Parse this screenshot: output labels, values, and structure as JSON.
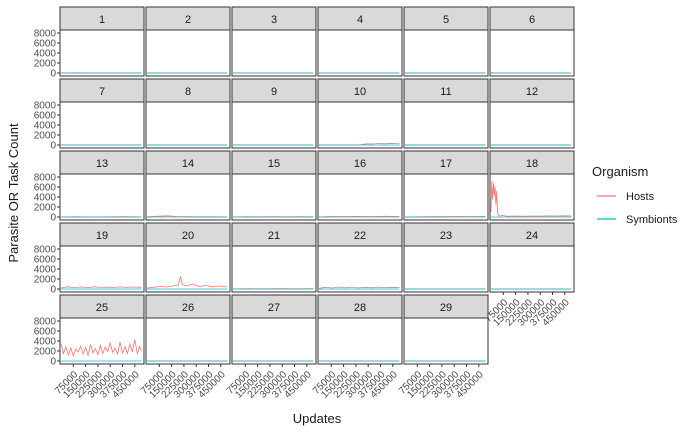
{
  "chart_data": {
    "type": "line",
    "xlabel": "Updates",
    "ylabel": "Parasite OR Task Count",
    "x_ticks": [
      75000,
      150000,
      225000,
      300000,
      375000,
      450000
    ],
    "x_tick_labels": [
      "75000",
      "150000",
      "225000",
      "300000",
      "375000",
      "450000"
    ],
    "xlim": [
      0,
      500000
    ],
    "y_ticks": [
      0,
      2000,
      4000,
      6000,
      8000
    ],
    "y_tick_labels": [
      "0",
      "2000",
      "4000",
      "6000",
      "8000"
    ],
    "ylim": [
      -600,
      8600
    ],
    "grid": false,
    "legend": {
      "title": "Organism",
      "position": "right",
      "entries": [
        {
          "name": "Hosts",
          "color": "#F8766D"
        },
        {
          "name": "Symbionts",
          "color": "#00BFC4"
        }
      ]
    },
    "panels": [
      {
        "label": "1",
        "hosts": [
          [
            0,
            0
          ],
          [
            50000,
            10
          ],
          [
            100000,
            40
          ],
          [
            150000,
            5
          ],
          [
            200000,
            0
          ],
          [
            250000,
            0
          ],
          [
            300000,
            0
          ],
          [
            350000,
            0
          ],
          [
            400000,
            0
          ],
          [
            450000,
            0
          ],
          [
            490000,
            0
          ]
        ],
        "symbionts": [
          [
            0,
            0
          ],
          [
            490000,
            0
          ]
        ]
      },
      {
        "label": "2",
        "hosts": [
          [
            0,
            0
          ],
          [
            490000,
            0
          ]
        ],
        "symbionts": [
          [
            0,
            0
          ],
          [
            490000,
            0
          ]
        ]
      },
      {
        "label": "3",
        "hosts": [
          [
            0,
            0
          ],
          [
            490000,
            0
          ]
        ],
        "symbionts": [
          [
            0,
            0
          ],
          [
            490000,
            0
          ]
        ]
      },
      {
        "label": "4",
        "hosts": [
          [
            0,
            0
          ],
          [
            490000,
            0
          ]
        ],
        "symbionts": [
          [
            0,
            0
          ],
          [
            490000,
            0
          ]
        ]
      },
      {
        "label": "5",
        "hosts": [
          [
            0,
            0
          ],
          [
            490000,
            0
          ]
        ],
        "symbionts": [
          [
            0,
            0
          ],
          [
            490000,
            0
          ]
        ]
      },
      {
        "label": "6",
        "hosts": [
          [
            0,
            200
          ],
          [
            10000,
            50
          ],
          [
            20000,
            0
          ],
          [
            490000,
            0
          ]
        ],
        "symbionts": [
          [
            0,
            0
          ],
          [
            490000,
            0
          ]
        ]
      },
      {
        "label": "7",
        "hosts": [
          [
            0,
            0
          ],
          [
            490000,
            0
          ]
        ],
        "symbionts": [
          [
            0,
            0
          ],
          [
            490000,
            0
          ]
        ]
      },
      {
        "label": "8",
        "hosts": [
          [
            0,
            0
          ],
          [
            490000,
            0
          ]
        ],
        "symbionts": [
          [
            0,
            0
          ],
          [
            490000,
            0
          ]
        ]
      },
      {
        "label": "9",
        "hosts": [
          [
            0,
            0
          ],
          [
            490000,
            0
          ]
        ],
        "symbionts": [
          [
            0,
            0
          ],
          [
            490000,
            0
          ]
        ]
      },
      {
        "label": "10",
        "hosts": [
          [
            0,
            0
          ],
          [
            250000,
            0
          ],
          [
            270000,
            150
          ],
          [
            300000,
            250
          ],
          [
            330000,
            200
          ],
          [
            360000,
            300
          ],
          [
            400000,
            250
          ],
          [
            440000,
            350
          ],
          [
            470000,
            300
          ],
          [
            490000,
            250
          ]
        ],
        "symbionts": [
          [
            0,
            0
          ],
          [
            490000,
            0
          ]
        ]
      },
      {
        "label": "11",
        "hosts": [
          [
            0,
            0
          ],
          [
            490000,
            0
          ]
        ],
        "symbionts": [
          [
            0,
            0
          ],
          [
            490000,
            0
          ]
        ]
      },
      {
        "label": "12",
        "hosts": [
          [
            0,
            0
          ],
          [
            490000,
            0
          ]
        ],
        "symbionts": [
          [
            0,
            0
          ],
          [
            490000,
            0
          ]
        ]
      },
      {
        "label": "13",
        "hosts": [
          [
            0,
            0
          ],
          [
            100000,
            30
          ],
          [
            200000,
            0
          ],
          [
            300000,
            40
          ],
          [
            400000,
            60
          ],
          [
            490000,
            20
          ]
        ],
        "symbionts": [
          [
            0,
            0
          ],
          [
            490000,
            0
          ]
        ]
      },
      {
        "label": "14",
        "hosts": [
          [
            0,
            50
          ],
          [
            60000,
            150
          ],
          [
            120000,
            250
          ],
          [
            180000,
            100
          ],
          [
            240000,
            80
          ],
          [
            300000,
            50
          ],
          [
            360000,
            40
          ],
          [
            420000,
            30
          ],
          [
            490000,
            20
          ]
        ],
        "symbionts": [
          [
            0,
            0
          ],
          [
            490000,
            0
          ]
        ]
      },
      {
        "label": "15",
        "hosts": [
          [
            0,
            0
          ],
          [
            80000,
            60
          ],
          [
            160000,
            30
          ],
          [
            240000,
            80
          ],
          [
            320000,
            40
          ],
          [
            400000,
            60
          ],
          [
            490000,
            30
          ]
        ],
        "symbionts": [
          [
            0,
            0
          ],
          [
            490000,
            0
          ]
        ]
      },
      {
        "label": "16",
        "hosts": [
          [
            0,
            20
          ],
          [
            80000,
            100
          ],
          [
            160000,
            60
          ],
          [
            240000,
            120
          ],
          [
            320000,
            80
          ],
          [
            400000,
            150
          ],
          [
            490000,
            100
          ]
        ],
        "symbionts": [
          [
            0,
            0
          ],
          [
            490000,
            0
          ]
        ]
      },
      {
        "label": "17",
        "hosts": [
          [
            0,
            0
          ],
          [
            80000,
            40
          ],
          [
            160000,
            80
          ],
          [
            240000,
            60
          ],
          [
            320000,
            100
          ],
          [
            400000,
            80
          ],
          [
            490000,
            120
          ]
        ],
        "symbionts": [
          [
            0,
            0
          ],
          [
            490000,
            0
          ]
        ]
      },
      {
        "label": "18",
        "hosts": [
          [
            0,
            1000
          ],
          [
            5000,
            7200
          ],
          [
            10000,
            3500
          ],
          [
            15000,
            6800
          ],
          [
            20000,
            4200
          ],
          [
            25000,
            6000
          ],
          [
            30000,
            2500
          ],
          [
            35000,
            5200
          ],
          [
            40000,
            800
          ],
          [
            45000,
            400
          ],
          [
            50000,
            200
          ],
          [
            70000,
            300
          ],
          [
            100000,
            150
          ],
          [
            150000,
            200
          ],
          [
            200000,
            150
          ],
          [
            250000,
            200
          ],
          [
            300000,
            180
          ],
          [
            350000,
            220
          ],
          [
            400000,
            200
          ],
          [
            450000,
            250
          ],
          [
            490000,
            200
          ]
        ],
        "symbionts": [
          [
            0,
            0
          ],
          [
            490000,
            0
          ]
        ]
      },
      {
        "label": "19",
        "hosts": [
          [
            0,
            200
          ],
          [
            40000,
            450
          ],
          [
            80000,
            300
          ],
          [
            120000,
            400
          ],
          [
            160000,
            280
          ],
          [
            200000,
            450
          ],
          [
            240000,
            320
          ],
          [
            280000,
            380
          ],
          [
            320000,
            300
          ],
          [
            360000,
            420
          ],
          [
            400000,
            330
          ],
          [
            440000,
            400
          ],
          [
            490000,
            350
          ]
        ],
        "symbionts": [
          [
            0,
            0
          ],
          [
            490000,
            0
          ]
        ]
      },
      {
        "label": "20",
        "hosts": [
          [
            0,
            200
          ],
          [
            40000,
            350
          ],
          [
            80000,
            500
          ],
          [
            120000,
            400
          ],
          [
            160000,
            600
          ],
          [
            190000,
            800
          ],
          [
            205000,
            2500
          ],
          [
            215000,
            900
          ],
          [
            240000,
            600
          ],
          [
            280000,
            1000
          ],
          [
            320000,
            500
          ],
          [
            360000,
            700
          ],
          [
            400000,
            450
          ],
          [
            440000,
            600
          ],
          [
            490000,
            400
          ]
        ],
        "symbionts": [
          [
            0,
            0
          ],
          [
            490000,
            0
          ]
        ]
      },
      {
        "label": "21",
        "hosts": [
          [
            0,
            20
          ],
          [
            100000,
            60
          ],
          [
            200000,
            40
          ],
          [
            300000,
            80
          ],
          [
            400000,
            50
          ],
          [
            490000,
            70
          ]
        ],
        "symbionts": [
          [
            0,
            0
          ],
          [
            490000,
            0
          ]
        ]
      },
      {
        "label": "22",
        "hosts": [
          [
            0,
            150
          ],
          [
            40000,
            350
          ],
          [
            80000,
            200
          ],
          [
            120000,
            400
          ],
          [
            160000,
            250
          ],
          [
            200000,
            380
          ],
          [
            240000,
            220
          ],
          [
            280000,
            350
          ],
          [
            320000,
            240
          ],
          [
            360000,
            380
          ],
          [
            400000,
            260
          ],
          [
            440000,
            340
          ],
          [
            490000,
            300
          ]
        ],
        "symbionts": [
          [
            0,
            0
          ],
          [
            490000,
            0
          ]
        ]
      },
      {
        "label": "23",
        "hosts": [
          [
            0,
            0
          ],
          [
            490000,
            0
          ]
        ],
        "symbionts": [
          [
            0,
            0
          ],
          [
            490000,
            0
          ]
        ]
      },
      {
        "label": "24",
        "hosts": [
          [
            0,
            0
          ],
          [
            490000,
            0
          ]
        ],
        "symbionts": [
          [
            0,
            0
          ],
          [
            490000,
            0
          ]
        ]
      },
      {
        "label": "25",
        "hosts": [
          [
            0,
            3500
          ],
          [
            15000,
            1500
          ],
          [
            30000,
            2800
          ],
          [
            45000,
            1200
          ],
          [
            60000,
            2600
          ],
          [
            75000,
            1000
          ],
          [
            90000,
            2400
          ],
          [
            105000,
            1800
          ],
          [
            120000,
            3000
          ],
          [
            135000,
            1400
          ],
          [
            150000,
            2700
          ],
          [
            165000,
            1100
          ],
          [
            180000,
            3300
          ],
          [
            195000,
            1600
          ],
          [
            210000,
            2500
          ],
          [
            225000,
            1300
          ],
          [
            240000,
            3100
          ],
          [
            255000,
            1500
          ],
          [
            270000,
            2800
          ],
          [
            285000,
            1900
          ],
          [
            300000,
            3600
          ],
          [
            315000,
            1700
          ],
          [
            330000,
            2600
          ],
          [
            345000,
            1400
          ],
          [
            360000,
            3800
          ],
          [
            375000,
            1600
          ],
          [
            390000,
            2900
          ],
          [
            405000,
            1500
          ],
          [
            420000,
            3400
          ],
          [
            435000,
            1800
          ],
          [
            450000,
            4300
          ],
          [
            465000,
            1500
          ],
          [
            480000,
            2900
          ],
          [
            490000,
            2000
          ]
        ],
        "symbionts": [
          [
            0,
            0
          ],
          [
            490000,
            0
          ]
        ]
      },
      {
        "label": "26",
        "hosts": [
          [
            0,
            0
          ],
          [
            490000,
            0
          ]
        ],
        "symbionts": [
          [
            0,
            0
          ],
          [
            490000,
            0
          ]
        ]
      },
      {
        "label": "27",
        "hosts": [
          [
            0,
            0
          ],
          [
            490000,
            0
          ]
        ],
        "symbionts": [
          [
            0,
            0
          ],
          [
            490000,
            0
          ]
        ]
      },
      {
        "label": "28",
        "hosts": [
          [
            0,
            0
          ],
          [
            490000,
            0
          ]
        ],
        "symbionts": [
          [
            0,
            0
          ],
          [
            490000,
            0
          ]
        ]
      },
      {
        "label": "29",
        "hosts": [
          [
            0,
            0
          ],
          [
            490000,
            0
          ]
        ],
        "symbionts": [
          [
            0,
            0
          ],
          [
            490000,
            0
          ]
        ]
      }
    ]
  }
}
